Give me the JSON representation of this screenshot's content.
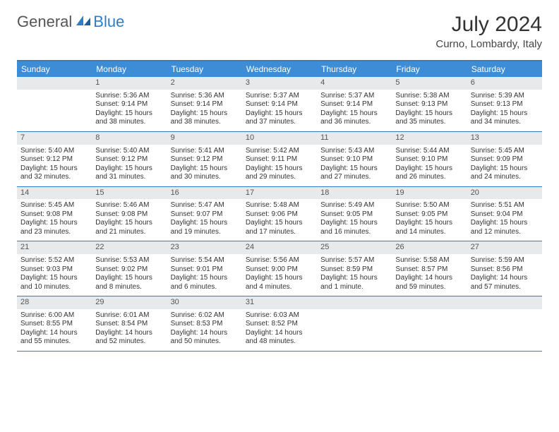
{
  "logo": {
    "word1": "General",
    "word2": "Blue"
  },
  "title": "July 2024",
  "location": "Curno, Lombardy, Italy",
  "colors": {
    "brand_blue": "#2f7dc4",
    "header_blue": "#3d8dd6",
    "daynum_bg": "#e8e9ea",
    "text": "#333333",
    "white": "#ffffff"
  },
  "dayHeaders": [
    "Sunday",
    "Monday",
    "Tuesday",
    "Wednesday",
    "Thursday",
    "Friday",
    "Saturday"
  ],
  "weeks": [
    [
      {
        "num": "",
        "sunrise": "",
        "sunset": "",
        "daylight": ""
      },
      {
        "num": "1",
        "sunrise": "Sunrise: 5:36 AM",
        "sunset": "Sunset: 9:14 PM",
        "daylight": "Daylight: 15 hours and 38 minutes."
      },
      {
        "num": "2",
        "sunrise": "Sunrise: 5:36 AM",
        "sunset": "Sunset: 9:14 PM",
        "daylight": "Daylight: 15 hours and 38 minutes."
      },
      {
        "num": "3",
        "sunrise": "Sunrise: 5:37 AM",
        "sunset": "Sunset: 9:14 PM",
        "daylight": "Daylight: 15 hours and 37 minutes."
      },
      {
        "num": "4",
        "sunrise": "Sunrise: 5:37 AM",
        "sunset": "Sunset: 9:14 PM",
        "daylight": "Daylight: 15 hours and 36 minutes."
      },
      {
        "num": "5",
        "sunrise": "Sunrise: 5:38 AM",
        "sunset": "Sunset: 9:13 PM",
        "daylight": "Daylight: 15 hours and 35 minutes."
      },
      {
        "num": "6",
        "sunrise": "Sunrise: 5:39 AM",
        "sunset": "Sunset: 9:13 PM",
        "daylight": "Daylight: 15 hours and 34 minutes."
      }
    ],
    [
      {
        "num": "7",
        "sunrise": "Sunrise: 5:40 AM",
        "sunset": "Sunset: 9:12 PM",
        "daylight": "Daylight: 15 hours and 32 minutes."
      },
      {
        "num": "8",
        "sunrise": "Sunrise: 5:40 AM",
        "sunset": "Sunset: 9:12 PM",
        "daylight": "Daylight: 15 hours and 31 minutes."
      },
      {
        "num": "9",
        "sunrise": "Sunrise: 5:41 AM",
        "sunset": "Sunset: 9:12 PM",
        "daylight": "Daylight: 15 hours and 30 minutes."
      },
      {
        "num": "10",
        "sunrise": "Sunrise: 5:42 AM",
        "sunset": "Sunset: 9:11 PM",
        "daylight": "Daylight: 15 hours and 29 minutes."
      },
      {
        "num": "11",
        "sunrise": "Sunrise: 5:43 AM",
        "sunset": "Sunset: 9:10 PM",
        "daylight": "Daylight: 15 hours and 27 minutes."
      },
      {
        "num": "12",
        "sunrise": "Sunrise: 5:44 AM",
        "sunset": "Sunset: 9:10 PM",
        "daylight": "Daylight: 15 hours and 26 minutes."
      },
      {
        "num": "13",
        "sunrise": "Sunrise: 5:45 AM",
        "sunset": "Sunset: 9:09 PM",
        "daylight": "Daylight: 15 hours and 24 minutes."
      }
    ],
    [
      {
        "num": "14",
        "sunrise": "Sunrise: 5:45 AM",
        "sunset": "Sunset: 9:08 PM",
        "daylight": "Daylight: 15 hours and 23 minutes."
      },
      {
        "num": "15",
        "sunrise": "Sunrise: 5:46 AM",
        "sunset": "Sunset: 9:08 PM",
        "daylight": "Daylight: 15 hours and 21 minutes."
      },
      {
        "num": "16",
        "sunrise": "Sunrise: 5:47 AM",
        "sunset": "Sunset: 9:07 PM",
        "daylight": "Daylight: 15 hours and 19 minutes."
      },
      {
        "num": "17",
        "sunrise": "Sunrise: 5:48 AM",
        "sunset": "Sunset: 9:06 PM",
        "daylight": "Daylight: 15 hours and 17 minutes."
      },
      {
        "num": "18",
        "sunrise": "Sunrise: 5:49 AM",
        "sunset": "Sunset: 9:05 PM",
        "daylight": "Daylight: 15 hours and 16 minutes."
      },
      {
        "num": "19",
        "sunrise": "Sunrise: 5:50 AM",
        "sunset": "Sunset: 9:05 PM",
        "daylight": "Daylight: 15 hours and 14 minutes."
      },
      {
        "num": "20",
        "sunrise": "Sunrise: 5:51 AM",
        "sunset": "Sunset: 9:04 PM",
        "daylight": "Daylight: 15 hours and 12 minutes."
      }
    ],
    [
      {
        "num": "21",
        "sunrise": "Sunrise: 5:52 AM",
        "sunset": "Sunset: 9:03 PM",
        "daylight": "Daylight: 15 hours and 10 minutes."
      },
      {
        "num": "22",
        "sunrise": "Sunrise: 5:53 AM",
        "sunset": "Sunset: 9:02 PM",
        "daylight": "Daylight: 15 hours and 8 minutes."
      },
      {
        "num": "23",
        "sunrise": "Sunrise: 5:54 AM",
        "sunset": "Sunset: 9:01 PM",
        "daylight": "Daylight: 15 hours and 6 minutes."
      },
      {
        "num": "24",
        "sunrise": "Sunrise: 5:56 AM",
        "sunset": "Sunset: 9:00 PM",
        "daylight": "Daylight: 15 hours and 4 minutes."
      },
      {
        "num": "25",
        "sunrise": "Sunrise: 5:57 AM",
        "sunset": "Sunset: 8:59 PM",
        "daylight": "Daylight: 15 hours and 1 minute."
      },
      {
        "num": "26",
        "sunrise": "Sunrise: 5:58 AM",
        "sunset": "Sunset: 8:57 PM",
        "daylight": "Daylight: 14 hours and 59 minutes."
      },
      {
        "num": "27",
        "sunrise": "Sunrise: 5:59 AM",
        "sunset": "Sunset: 8:56 PM",
        "daylight": "Daylight: 14 hours and 57 minutes."
      }
    ],
    [
      {
        "num": "28",
        "sunrise": "Sunrise: 6:00 AM",
        "sunset": "Sunset: 8:55 PM",
        "daylight": "Daylight: 14 hours and 55 minutes."
      },
      {
        "num": "29",
        "sunrise": "Sunrise: 6:01 AM",
        "sunset": "Sunset: 8:54 PM",
        "daylight": "Daylight: 14 hours and 52 minutes."
      },
      {
        "num": "30",
        "sunrise": "Sunrise: 6:02 AM",
        "sunset": "Sunset: 8:53 PM",
        "daylight": "Daylight: 14 hours and 50 minutes."
      },
      {
        "num": "31",
        "sunrise": "Sunrise: 6:03 AM",
        "sunset": "Sunset: 8:52 PM",
        "daylight": "Daylight: 14 hours and 48 minutes."
      },
      {
        "num": "",
        "sunrise": "",
        "sunset": "",
        "daylight": ""
      },
      {
        "num": "",
        "sunrise": "",
        "sunset": "",
        "daylight": ""
      },
      {
        "num": "",
        "sunrise": "",
        "sunset": "",
        "daylight": ""
      }
    ]
  ]
}
